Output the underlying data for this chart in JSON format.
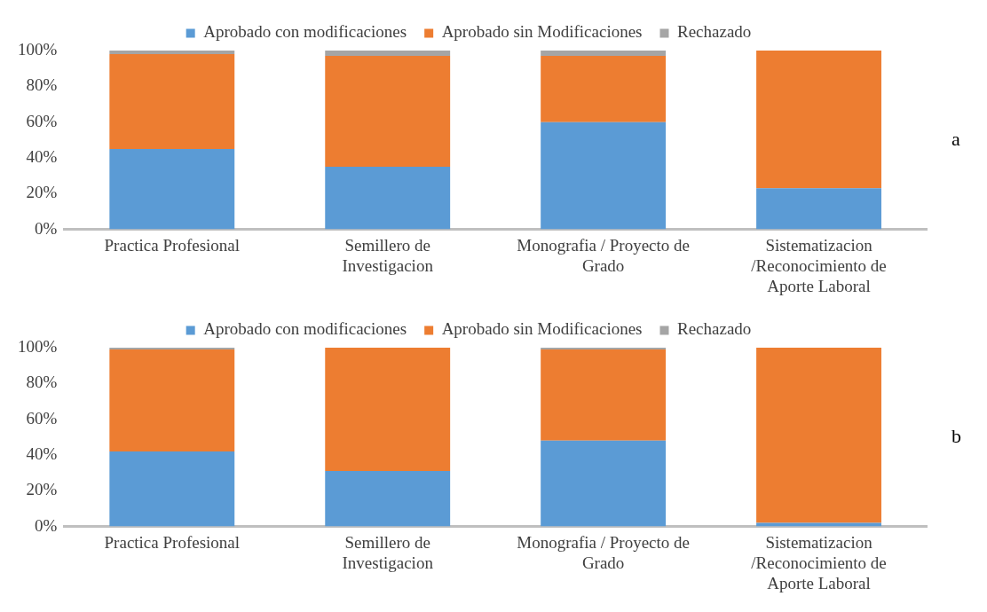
{
  "chart_data": [
    {
      "type": "bar",
      "stacked": true,
      "categories": [
        "Practica Profesional",
        "Semillero de Investigacion",
        "Monografia / Proyecto de Grado",
        "Sistematizacion /Reconocimiento de Aporte Laboral"
      ],
      "series": [
        {
          "name": "Aprobado con modificaciones",
          "color": "#5b9bd5",
          "values": [
            45,
            35,
            60,
            23
          ]
        },
        {
          "name": "Aprobado sin Modificaciones",
          "color": "#ed7d31",
          "values": [
            53,
            62,
            37,
            77
          ]
        },
        {
          "name": "Rechazado",
          "color": "#a5a5a5",
          "values": [
            2,
            3,
            3,
            0
          ]
        }
      ],
      "ylim": [
        0,
        100
      ],
      "yticks": [
        {
          "value": 0,
          "label": "0%"
        },
        {
          "value": 20,
          "label": "20%"
        },
        {
          "value": 40,
          "label": "40%"
        },
        {
          "value": 60,
          "label": "60%"
        },
        {
          "value": 80,
          "label": "80%"
        },
        {
          "value": 100,
          "label": "100%"
        }
      ],
      "grid": false,
      "legend": "top",
      "annotations": [
        "a"
      ]
    },
    {
      "type": "bar",
      "stacked": true,
      "categories": [
        "Practica Profesional",
        "Semillero de Investigacion",
        "Monografia / Proyecto de Grado",
        "Sistematizacion /Reconocimiento de Aporte Laboral"
      ],
      "series": [
        {
          "name": "Aprobado con modificaciones",
          "color": "#5b9bd5",
          "values": [
            42,
            31,
            48,
            2
          ]
        },
        {
          "name": "Aprobado sin Modificaciones",
          "color": "#ed7d31",
          "values": [
            57,
            69,
            51,
            98
          ]
        },
        {
          "name": "Rechazado",
          "color": "#a5a5a5",
          "values": [
            1,
            0,
            1,
            0
          ]
        }
      ],
      "ylim": [
        0,
        100
      ],
      "yticks": [
        {
          "value": 0,
          "label": "0%"
        },
        {
          "value": 20,
          "label": "20%"
        },
        {
          "value": 40,
          "label": "40%"
        },
        {
          "value": 60,
          "label": "60%"
        },
        {
          "value": 80,
          "label": "80%"
        },
        {
          "value": 100,
          "label": "100%"
        }
      ],
      "grid": false,
      "legend": "top",
      "annotations": [
        "b"
      ]
    }
  ]
}
